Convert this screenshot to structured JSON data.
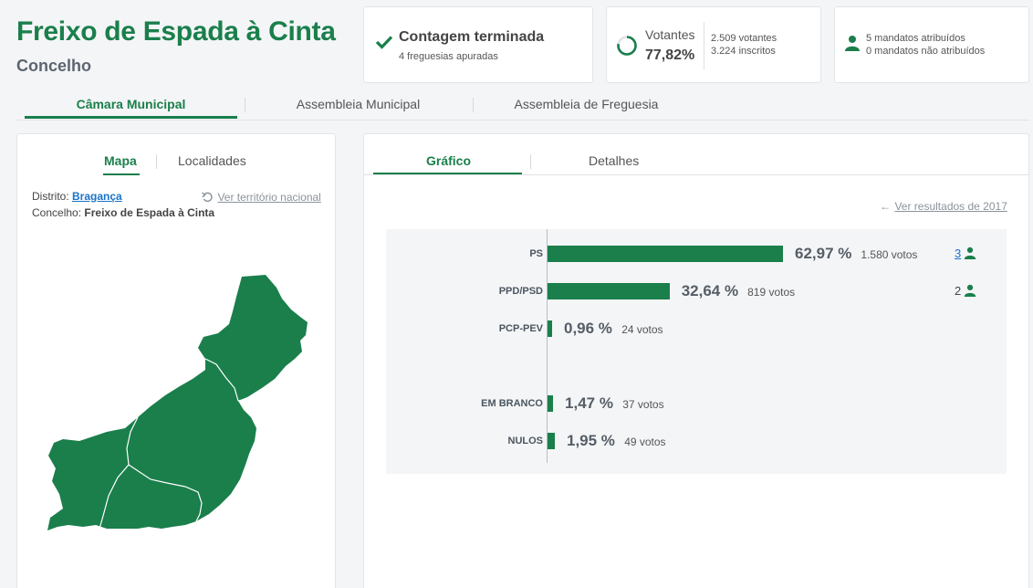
{
  "header": {
    "title": "Freixo de Espada à Cinta",
    "subtitle": "Concelho"
  },
  "status_card": {
    "title": "Contagem terminada",
    "subtitle": "4 freguesias apuradas"
  },
  "voters_card": {
    "label": "Votantes",
    "percent": "77,82%",
    "voters": "2.509 votantes",
    "registered": "3.224 inscritos",
    "turnout_fraction": 0.7782
  },
  "mandates_card": {
    "assigned": "5 mandatos atribuídos",
    "unassigned": "0 mandatos não atribuídos"
  },
  "main_tabs": [
    "Câmara Municipal",
    "Assembleia Municipal",
    "Assembleia de Freguesia"
  ],
  "left_panel": {
    "tabs": [
      "Mapa",
      "Localidades"
    ],
    "district_label": "Distrito:",
    "district_value": "Bragança",
    "reset_link": "Ver território nacional",
    "county_label": "Concelho:",
    "county_value": "Freixo de Espada à Cinta"
  },
  "right_panel": {
    "tabs": [
      "Gráfico",
      "Detalhes"
    ],
    "prev_results_link": "Ver resultados de 2017"
  },
  "colors": {
    "accent": "#1a7f4b",
    "link": "#1a73c8"
  },
  "chart_data": {
    "type": "bar",
    "orientation": "horizontal",
    "categories": [
      "PS",
      "PPD/PSD",
      "PCP-PEV",
      "EM BRANCO",
      "NULOS"
    ],
    "values": [
      62.97,
      32.64,
      0.96,
      1.47,
      1.95
    ],
    "value_labels": [
      "62,97 %",
      "32,64 %",
      "0,96 %",
      "1,47 %",
      "1,95 %"
    ],
    "votes": [
      "1.580 votos",
      "819 votos",
      "24 votos",
      "37 votos",
      "49 votos"
    ],
    "mandates": [
      "3",
      "2",
      "",
      "",
      ""
    ]
  }
}
